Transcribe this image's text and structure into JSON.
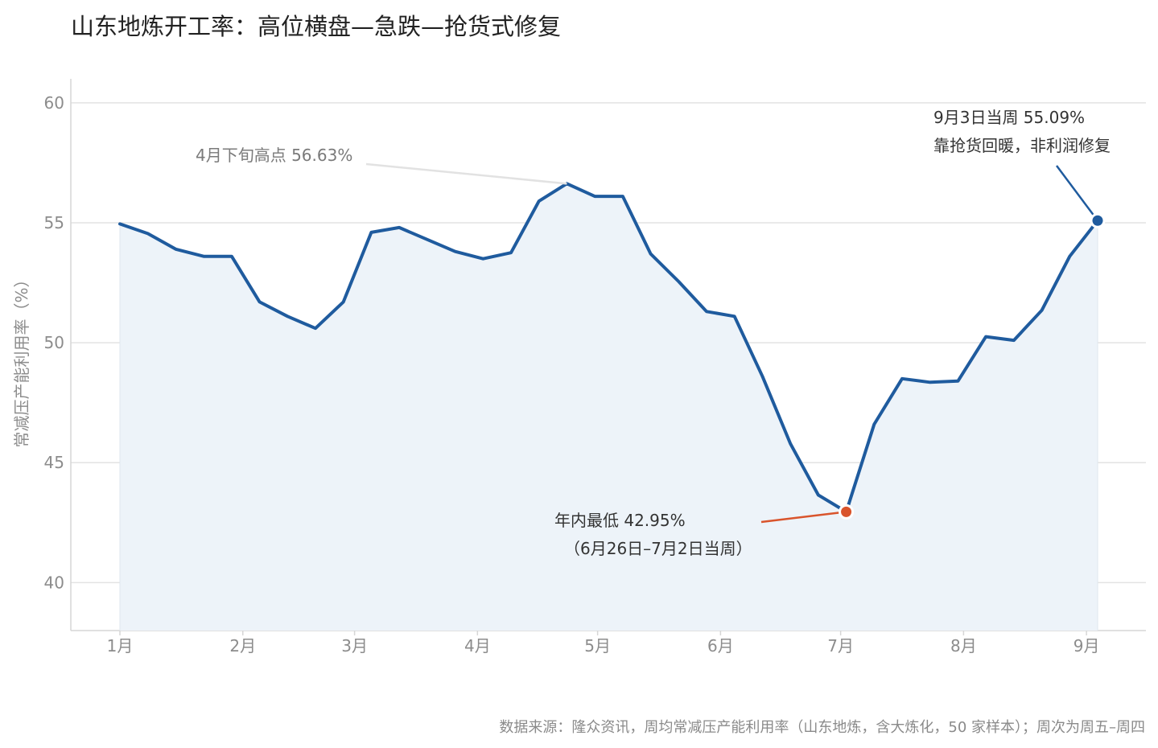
{
  "title": "山东地炼开工率：高位横盘—急跌—抢货式修复",
  "source": "数据来源：隆众资讯，周均常减压产能利用率（山东地炼，含大炼化，50 家样本）；周次为周五–周四",
  "chart_data": {
    "type": "area",
    "ylabel": "常减压产能利用率（%）",
    "ylim": [
      38,
      61
    ],
    "yticks": [
      40,
      45,
      50,
      55,
      60
    ],
    "xticks": [
      {
        "label": "1月",
        "week": 0
      },
      {
        "label": "2月",
        "week": 4.4
      },
      {
        "label": "3月",
        "week": 8.4
      },
      {
        "label": "4月",
        "week": 12.8
      },
      {
        "label": "5月",
        "week": 17.1
      },
      {
        "label": "6月",
        "week": 21.5
      },
      {
        "label": "7月",
        "week": 25.8
      },
      {
        "label": "8月",
        "week": 30.2
      },
      {
        "label": "9月",
        "week": 34.6
      }
    ],
    "grid": true,
    "series": [
      {
        "values": [
          54.95,
          54.55,
          53.9,
          53.6,
          53.6,
          51.7,
          51.1,
          50.6,
          51.7,
          54.6,
          54.8,
          54.3,
          53.8,
          53.5,
          53.75,
          55.9,
          56.63,
          56.1,
          56.1,
          53.7,
          52.55,
          51.3,
          51.1,
          48.6,
          45.8,
          43.65,
          42.95,
          46.6,
          48.5,
          48.35,
          48.4,
          50.25,
          50.1,
          51.35,
          53.6,
          55.09
        ],
        "color": "#1f5b9e",
        "fill": "#edf3f9"
      }
    ],
    "annotations": [
      {
        "lines": [
          "4月下旬高点 56.63%"
        ],
        "point_index": 16,
        "color": "#7a7a7a"
      },
      {
        "lines": [
          "年内最低 42.95%",
          "（6月26日–7月2日当周）"
        ],
        "point_index": 26,
        "color": "#333333",
        "marker": "#d9542c"
      },
      {
        "lines": [
          "9月3日当周 55.09%",
          "靠抢货回暖，非利润修复"
        ],
        "point_index": 35,
        "color": "#333333",
        "marker": "#1f5b9e"
      }
    ]
  }
}
